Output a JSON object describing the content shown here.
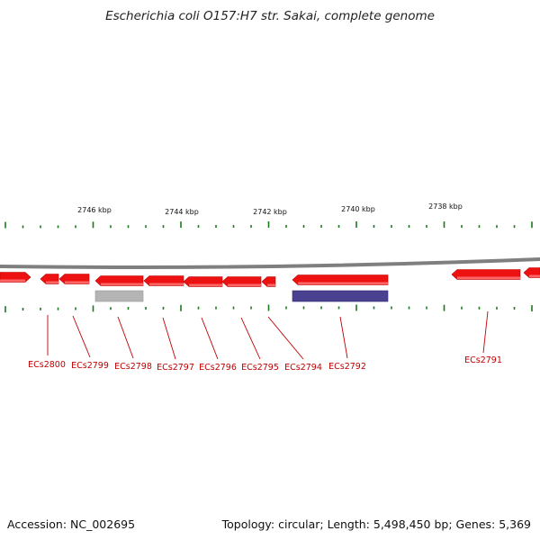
{
  "title": "Escherichia coli O157:H7 str. Sakai, complete genome",
  "footer": {
    "accession": "Accession: NC_002695",
    "summary": "Topology: circular; Length: 5,498,450 bp; Genes: 5,369"
  },
  "colors": {
    "backbone": "#7f7f7f",
    "tick": "#1a7a1a",
    "gene_forward": "#ee1111",
    "gene_grey": "#b4b4b4",
    "gene_purple": "#4a4290",
    "label": "#c00000"
  },
  "ruler": {
    "labels": [
      {
        "text": "2746 kbp"
      },
      {
        "text": "2744 kbp"
      },
      {
        "text": "2742 kbp"
      },
      {
        "text": "2740 kbp"
      },
      {
        "text": "2738 kbp"
      }
    ]
  },
  "genes": [
    {
      "label": "ECs2800",
      "color": "gene_forward"
    },
    {
      "label": "ECs2799",
      "color": "gene_forward"
    },
    {
      "label": "ECs2798",
      "color": "gene_forward"
    },
    {
      "label": "ECs2797",
      "color": "gene_forward"
    },
    {
      "label": "ECs2796",
      "color": "gene_forward"
    },
    {
      "label": "ECs2795",
      "color": "gene_forward"
    },
    {
      "label": "ECs2794",
      "color": "gene_forward"
    },
    {
      "label": "ECs2792",
      "color": "gene_forward"
    },
    {
      "label": "ECs2791",
      "color": "gene_forward"
    }
  ]
}
